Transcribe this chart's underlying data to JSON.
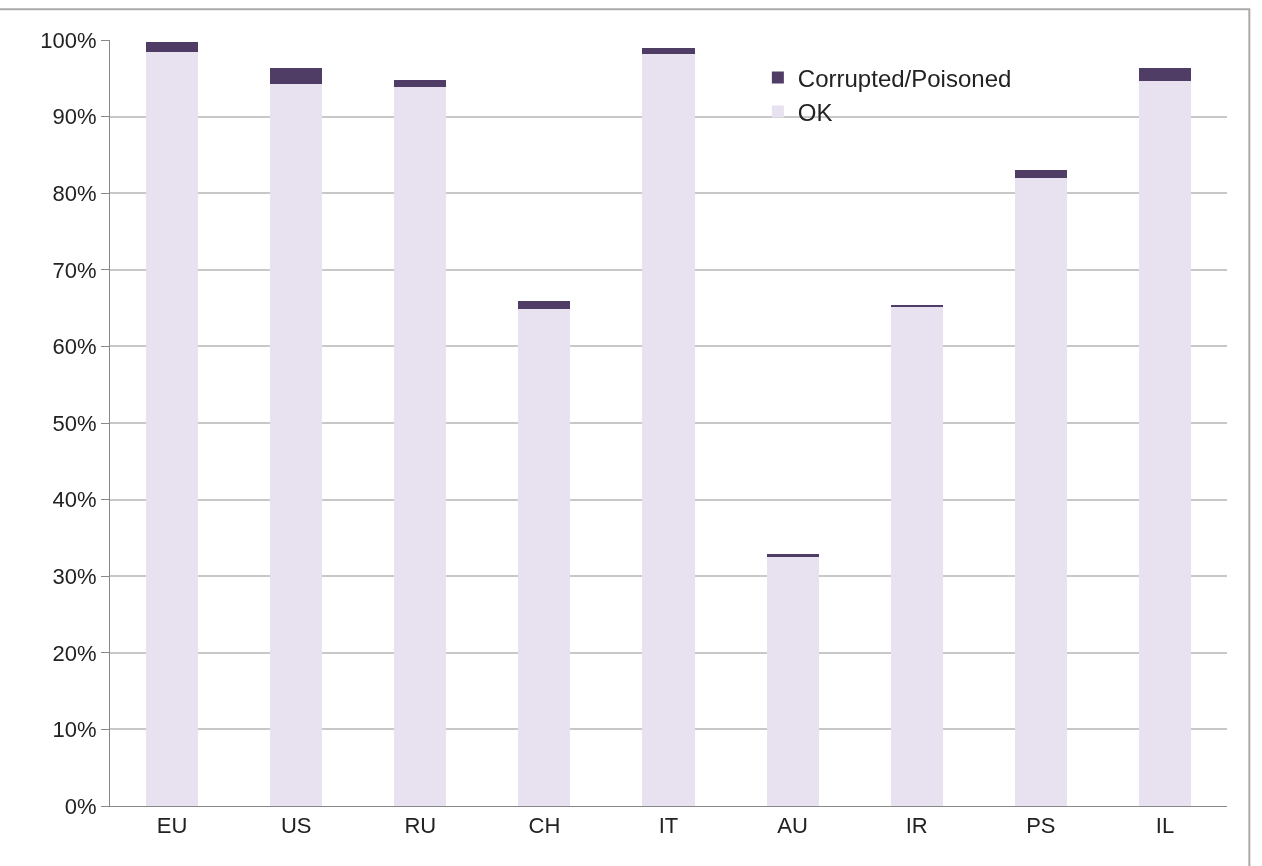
{
  "chart_data": {
    "type": "bar",
    "stacked": true,
    "categories": [
      "EU",
      "US",
      "RU",
      "CH",
      "IT",
      "AU",
      "IR",
      "PS",
      "IL"
    ],
    "series": [
      {
        "name": "OK",
        "color": "#e8e1ef",
        "values": [
          98.4,
          94.3,
          93.8,
          64.9,
          98.2,
          32.5,
          65.2,
          82.0,
          94.6
        ]
      },
      {
        "name": "Corrupted/Poisoned",
        "color": "#4f3d66",
        "values": [
          1.3,
          2.1,
          1.0,
          1.0,
          0.8,
          0.4,
          0.2,
          1.0,
          1.7
        ]
      }
    ],
    "ylim": [
      0,
      100
    ],
    "yticks": [
      {
        "value": 0,
        "label": "0%"
      },
      {
        "value": 10,
        "label": "10%"
      },
      {
        "value": 20,
        "label": "20%"
      },
      {
        "value": 30,
        "label": "30%"
      },
      {
        "value": 40,
        "label": "40%"
      },
      {
        "value": 50,
        "label": "50%"
      },
      {
        "value": 60,
        "label": "60%"
      },
      {
        "value": 70,
        "label": "70%"
      },
      {
        "value": 80,
        "label": "80%"
      },
      {
        "value": 90,
        "label": "90%"
      },
      {
        "value": 100,
        "label": "100%"
      }
    ],
    "grid": "y",
    "legend": "top right"
  }
}
